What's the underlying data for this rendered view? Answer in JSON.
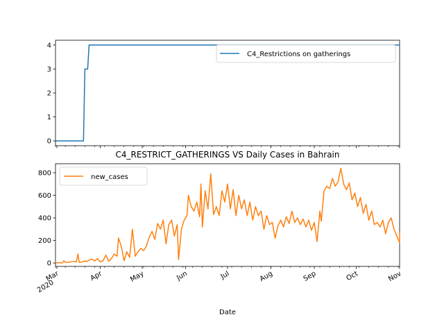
{
  "chart_data": [
    {
      "type": "line",
      "title": "",
      "xlabel": "",
      "ylabel": "",
      "ylim": [
        -0.2,
        4.2
      ],
      "yticks": [
        0,
        1,
        2,
        3,
        4
      ],
      "xlim": [
        "2020-02-29",
        "2020-11-01"
      ],
      "legend": {
        "position": "top-right",
        "entries": [
          "C4_Restrictions on gatherings"
        ]
      },
      "grid": false,
      "series": [
        {
          "name": "C4_Restrictions on gatherings",
          "color": "#1f77b4",
          "points": [
            [
              "2020-02-29",
              0
            ],
            [
              "2020-03-20",
              0
            ],
            [
              "2020-03-21",
              3
            ],
            [
              "2020-03-22",
              3
            ],
            [
              "2020-03-23",
              3
            ],
            [
              "2020-03-24",
              4
            ],
            [
              "2020-11-01",
              4
            ]
          ]
        }
      ]
    },
    {
      "type": "line",
      "title": "C4_RESTRICT_GATHERINGS VS Daily Cases in Bahrain",
      "xlabel": "Date",
      "ylabel": "",
      "ylim": [
        -30,
        880
      ],
      "yticks": [
        0,
        200,
        400,
        600,
        800
      ],
      "xlim": [
        "2020-02-29",
        "2020-11-01"
      ],
      "xticks": [
        {
          "date": "2020-03-01",
          "label": "Mar",
          "sublabel": "2020"
        },
        {
          "date": "2020-04-01",
          "label": "Apr"
        },
        {
          "date": "2020-05-01",
          "label": "May"
        },
        {
          "date": "2020-06-01",
          "label": "Jun"
        },
        {
          "date": "2020-07-01",
          "label": "Jul"
        },
        {
          "date": "2020-08-01",
          "label": "Aug"
        },
        {
          "date": "2020-09-01",
          "label": "Sep"
        },
        {
          "date": "2020-10-01",
          "label": "Oct"
        },
        {
          "date": "2020-11-01",
          "label": "Nov"
        }
      ],
      "legend": {
        "position": "top-left",
        "entries": [
          "new_cases"
        ]
      },
      "grid": false,
      "series": [
        {
          "name": "new_cases",
          "color": "#ff7f0e",
          "points": [
            [
              "2020-02-29",
              2
            ],
            [
              "2020-03-05",
              2
            ],
            [
              "2020-03-06",
              20
            ],
            [
              "2020-03-07",
              5
            ],
            [
              "2020-03-10",
              8
            ],
            [
              "2020-03-13",
              15
            ],
            [
              "2020-03-15",
              10
            ],
            [
              "2020-03-16",
              80
            ],
            [
              "2020-03-17",
              5
            ],
            [
              "2020-03-19",
              10
            ],
            [
              "2020-03-21",
              18
            ],
            [
              "2020-03-22",
              12
            ],
            [
              "2020-03-24",
              25
            ],
            [
              "2020-03-26",
              35
            ],
            [
              "2020-03-28",
              18
            ],
            [
              "2020-03-30",
              40
            ],
            [
              "2020-04-01",
              10
            ],
            [
              "2020-04-03",
              20
            ],
            [
              "2020-04-05",
              70
            ],
            [
              "2020-04-07",
              15
            ],
            [
              "2020-04-09",
              40
            ],
            [
              "2020-04-11",
              80
            ],
            [
              "2020-04-13",
              60
            ],
            [
              "2020-04-14",
              222
            ],
            [
              "2020-04-16",
              150
            ],
            [
              "2020-04-18",
              20
            ],
            [
              "2020-04-20",
              100
            ],
            [
              "2020-04-22",
              50
            ],
            [
              "2020-04-24",
              300
            ],
            [
              "2020-04-26",
              60
            ],
            [
              "2020-04-28",
              100
            ],
            [
              "2020-04-30",
              130
            ],
            [
              "2020-05-02",
              110
            ],
            [
              "2020-05-04",
              150
            ],
            [
              "2020-05-06",
              230
            ],
            [
              "2020-05-08",
              280
            ],
            [
              "2020-05-10",
              210
            ],
            [
              "2020-05-12",
              350
            ],
            [
              "2020-05-14",
              300
            ],
            [
              "2020-05-16",
              380
            ],
            [
              "2020-05-18",
              170
            ],
            [
              "2020-05-20",
              340
            ],
            [
              "2020-05-22",
              380
            ],
            [
              "2020-05-24",
              240
            ],
            [
              "2020-05-26",
              340
            ],
            [
              "2020-05-27",
              30
            ],
            [
              "2020-05-29",
              300
            ],
            [
              "2020-05-31",
              380
            ],
            [
              "2020-06-02",
              420
            ],
            [
              "2020-06-03",
              600
            ],
            [
              "2020-06-05",
              500
            ],
            [
              "2020-06-07",
              460
            ],
            [
              "2020-06-09",
              540
            ],
            [
              "2020-06-11",
              410
            ],
            [
              "2020-06-12",
              700
            ],
            [
              "2020-06-13",
              320
            ],
            [
              "2020-06-15",
              640
            ],
            [
              "2020-06-17",
              480
            ],
            [
              "2020-06-19",
              790
            ],
            [
              "2020-06-21",
              430
            ],
            [
              "2020-06-23",
              500
            ],
            [
              "2020-06-25",
              420
            ],
            [
              "2020-06-27",
              640
            ],
            [
              "2020-06-29",
              540
            ],
            [
              "2020-07-01",
              700
            ],
            [
              "2020-07-03",
              480
            ],
            [
              "2020-07-05",
              650
            ],
            [
              "2020-07-07",
              420
            ],
            [
              "2020-07-09",
              600
            ],
            [
              "2020-07-11",
              480
            ],
            [
              "2020-07-13",
              560
            ],
            [
              "2020-07-15",
              420
            ],
            [
              "2020-07-17",
              540
            ],
            [
              "2020-07-19",
              380
            ],
            [
              "2020-07-21",
              500
            ],
            [
              "2020-07-23",
              420
            ],
            [
              "2020-07-25",
              460
            ],
            [
              "2020-07-27",
              300
            ],
            [
              "2020-07-29",
              420
            ],
            [
              "2020-07-31",
              340
            ],
            [
              "2020-08-02",
              360
            ],
            [
              "2020-08-04",
              220
            ],
            [
              "2020-08-06",
              330
            ],
            [
              "2020-08-08",
              380
            ],
            [
              "2020-08-10",
              320
            ],
            [
              "2020-08-12",
              410
            ],
            [
              "2020-08-14",
              350
            ],
            [
              "2020-08-16",
              460
            ],
            [
              "2020-08-18",
              360
            ],
            [
              "2020-08-20",
              400
            ],
            [
              "2020-08-22",
              340
            ],
            [
              "2020-08-24",
              390
            ],
            [
              "2020-08-26",
              320
            ],
            [
              "2020-08-28",
              380
            ],
            [
              "2020-08-30",
              290
            ],
            [
              "2020-09-01",
              360
            ],
            [
              "2020-09-03",
              190
            ],
            [
              "2020-09-05",
              460
            ],
            [
              "2020-09-06",
              370
            ],
            [
              "2020-09-08",
              640
            ],
            [
              "2020-09-10",
              680
            ],
            [
              "2020-09-12",
              660
            ],
            [
              "2020-09-14",
              750
            ],
            [
              "2020-09-16",
              680
            ],
            [
              "2020-09-18",
              720
            ],
            [
              "2020-09-20",
              840
            ],
            [
              "2020-09-22",
              700
            ],
            [
              "2020-09-24",
              650
            ],
            [
              "2020-09-26",
              710
            ],
            [
              "2020-09-28",
              560
            ],
            [
              "2020-09-30",
              620
            ],
            [
              "2020-10-02",
              500
            ],
            [
              "2020-10-04",
              580
            ],
            [
              "2020-10-06",
              440
            ],
            [
              "2020-10-08",
              520
            ],
            [
              "2020-10-10",
              380
            ],
            [
              "2020-10-12",
              460
            ],
            [
              "2020-10-14",
              340
            ],
            [
              "2020-10-16",
              360
            ],
            [
              "2020-10-18",
              320
            ],
            [
              "2020-10-20",
              380
            ],
            [
              "2020-10-22",
              260
            ],
            [
              "2020-10-24",
              360
            ],
            [
              "2020-10-26",
              400
            ],
            [
              "2020-10-28",
              300
            ],
            [
              "2020-10-30",
              240
            ],
            [
              "2020-11-01",
              180
            ],
            [
              "2020-11-01",
              270
            ]
          ]
        }
      ]
    }
  ]
}
